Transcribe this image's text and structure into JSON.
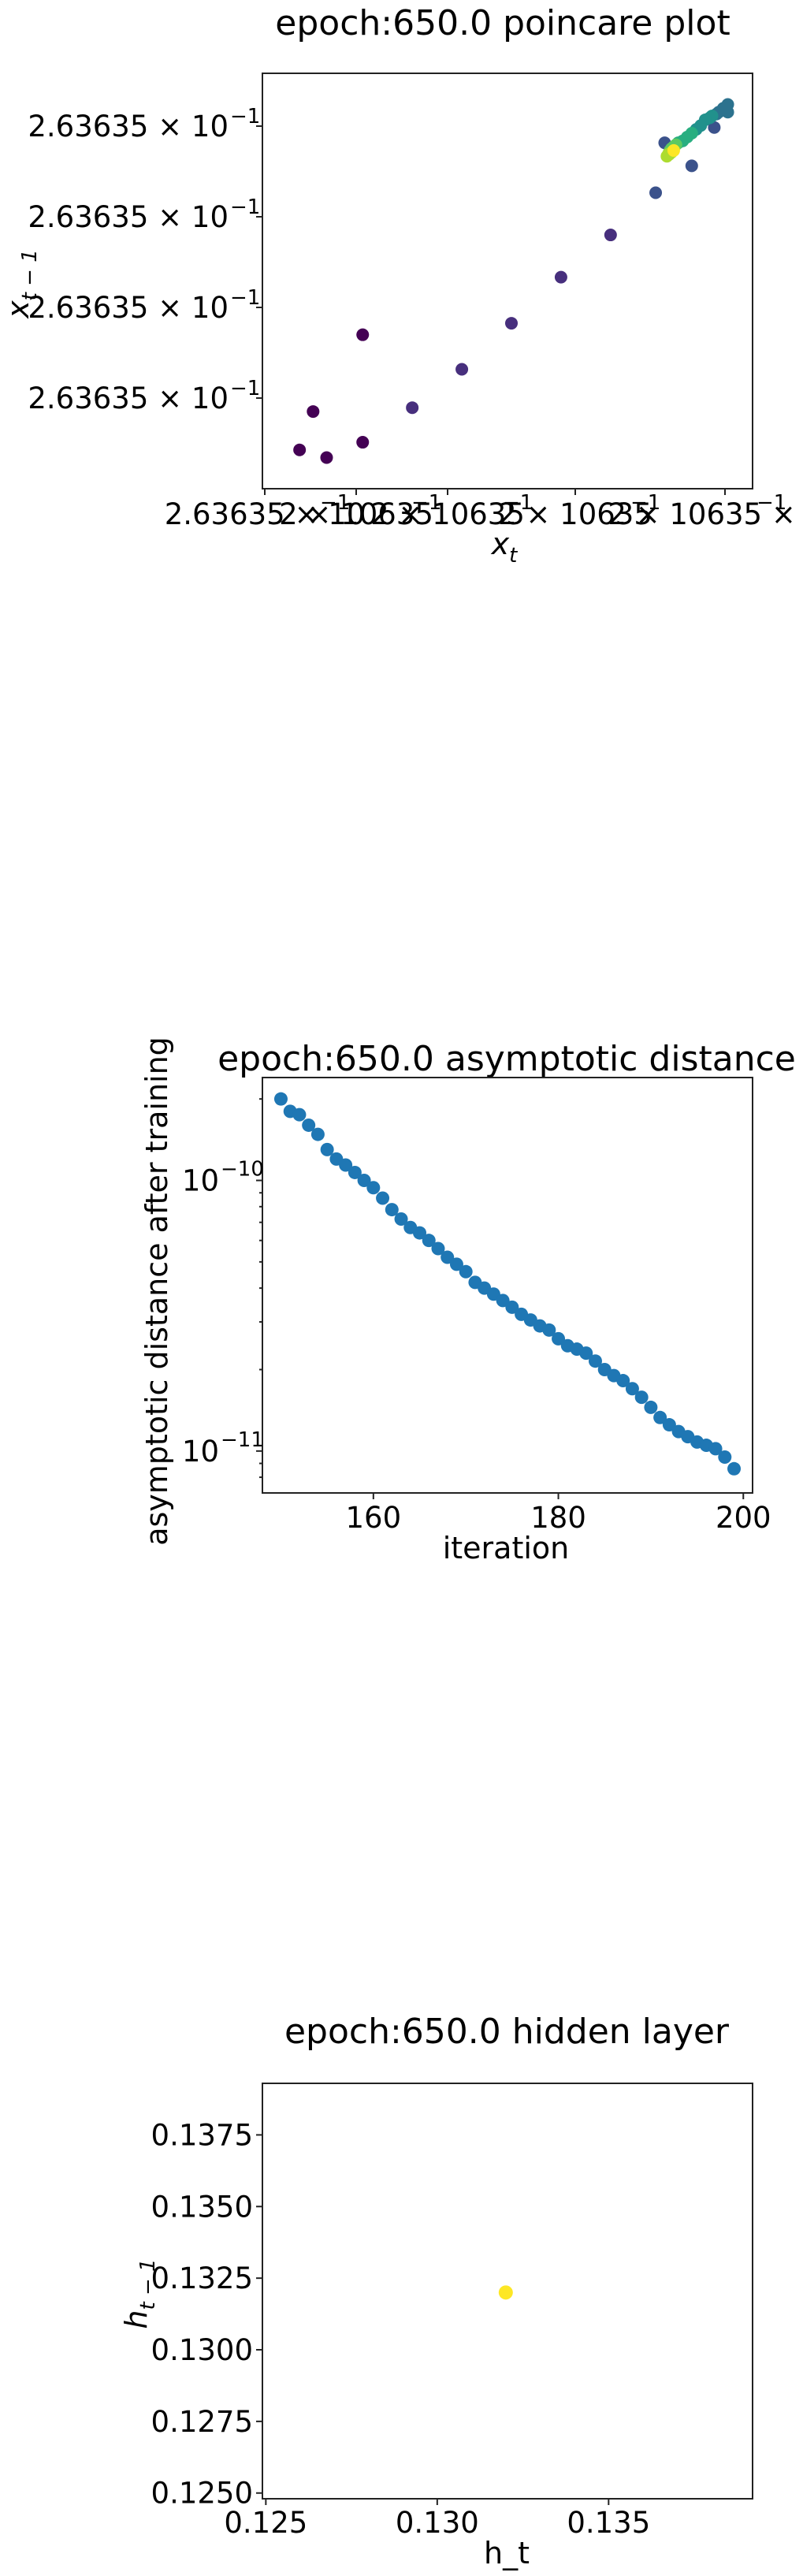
{
  "chart_data": [
    {
      "type": "scatter",
      "title": "epoch:650.0 poincare plot",
      "xlabel": "x_t",
      "ylabel": "x_{t-1}",
      "x_tick_labels": [
        "2.63635 × 10",
        "2 × 10635",
        "2 × 10635",
        "2 × 10635",
        "2 × 10635 × 10"
      ],
      "x_tick_exponent": "−1",
      "y_tick_labels": [
        "2.63635 × 10",
        "2.63635 × 10",
        "2.63635 × 10",
        "2.63635 × 10"
      ],
      "y_tick_exponent": "−1",
      "xlim": [
        0,
        1
      ],
      "ylim": [
        0,
        1
      ],
      "colormap": [
        "#440154",
        "#472f7d",
        "#3b528b",
        "#2c728e",
        "#21918c",
        "#28ae80",
        "#5ec962",
        "#addc30",
        "#fde725"
      ],
      "points": [
        {
          "x": 0.03,
          "y": 0.06
        },
        {
          "x": 0.09,
          "y": 0.04
        },
        {
          "x": 0.06,
          "y": 0.16
        },
        {
          "x": 0.17,
          "y": 0.08
        },
        {
          "x": 0.17,
          "y": 0.36
        },
        {
          "x": 0.28,
          "y": 0.17
        },
        {
          "x": 0.39,
          "y": 0.27
        },
        {
          "x": 0.5,
          "y": 0.39
        },
        {
          "x": 0.61,
          "y": 0.51
        },
        {
          "x": 0.72,
          "y": 0.62
        },
        {
          "x": 0.82,
          "y": 0.73
        },
        {
          "x": 0.9,
          "y": 0.8
        },
        {
          "x": 0.84,
          "y": 0.86
        },
        {
          "x": 0.95,
          "y": 0.9
        },
        {
          "x": 0.98,
          "y": 0.94
        },
        {
          "x": 0.98,
          "y": 0.96
        },
        {
          "x": 0.97,
          "y": 0.95
        },
        {
          "x": 0.96,
          "y": 0.94
        },
        {
          "x": 0.955,
          "y": 0.935
        },
        {
          "x": 0.945,
          "y": 0.93
        },
        {
          "x": 0.94,
          "y": 0.925
        },
        {
          "x": 0.93,
          "y": 0.92
        },
        {
          "x": 0.92,
          "y": 0.905
        },
        {
          "x": 0.91,
          "y": 0.895
        },
        {
          "x": 0.9,
          "y": 0.885
        },
        {
          "x": 0.89,
          "y": 0.875
        },
        {
          "x": 0.88,
          "y": 0.865
        },
        {
          "x": 0.87,
          "y": 0.86
        },
        {
          "x": 0.865,
          "y": 0.855
        },
        {
          "x": 0.86,
          "y": 0.85
        },
        {
          "x": 0.855,
          "y": 0.845
        },
        {
          "x": 0.852,
          "y": 0.84
        },
        {
          "x": 0.85,
          "y": 0.835
        },
        {
          "x": 0.848,
          "y": 0.83
        },
        {
          "x": 0.845,
          "y": 0.825
        },
        {
          "x": 0.85,
          "y": 0.83
        },
        {
          "x": 0.855,
          "y": 0.835
        },
        {
          "x": 0.86,
          "y": 0.84
        }
      ]
    },
    {
      "type": "scatter",
      "title": "epoch:650.0 asymptotic distance",
      "xlabel": "iteration",
      "ylabel": "asymptotic distance after training",
      "yscale": "log",
      "xlim": [
        148,
        201
      ],
      "ylim": [
        7e-12,
        2.4e-10
      ],
      "x_ticks": [
        160,
        180,
        200
      ],
      "y_ticks": [
        {
          "value": 1e-10,
          "base": "10",
          "exp": "−10"
        },
        {
          "value": 1e-11,
          "base": "10",
          "exp": "−11"
        }
      ],
      "color": "#1f77b4",
      "x": [
        150,
        151,
        152,
        153,
        154,
        155,
        156,
        157,
        158,
        159,
        160,
        161,
        162,
        163,
        164,
        165,
        166,
        167,
        168,
        169,
        170,
        171,
        172,
        173,
        174,
        175,
        176,
        177,
        178,
        179,
        180,
        181,
        182,
        183,
        184,
        185,
        186,
        187,
        188,
        189,
        190,
        191,
        192,
        193,
        194,
        195,
        196,
        197,
        198,
        199
      ],
      "y": [
        2e-10,
        1.8e-10,
        1.75e-10,
        1.6e-10,
        1.48e-10,
        1.3e-10,
        1.2e-10,
        1.14e-10,
        1.07e-10,
        1e-10,
        9.4e-11,
        8.6e-11,
        7.8e-11,
        7.2e-11,
        6.7e-11,
        6.4e-11,
        6e-11,
        5.6e-11,
        5.2e-11,
        4.9e-11,
        4.6e-11,
        4.2e-11,
        4e-11,
        3.8e-11,
        3.6e-11,
        3.4e-11,
        3.2e-11,
        3.05e-11,
        2.9e-11,
        2.8e-11,
        2.6e-11,
        2.45e-11,
        2.38e-11,
        2.3e-11,
        2.15e-11,
        2e-11,
        1.9e-11,
        1.82e-11,
        1.7e-11,
        1.58e-11,
        1.45e-11,
        1.33e-11,
        1.25e-11,
        1.18e-11,
        1.13e-11,
        1.08e-11,
        1.05e-11,
        1.02e-11,
        9.5e-12,
        8.6e-12
      ]
    },
    {
      "type": "scatter",
      "title": "epoch:650.0 hidden layer",
      "xlabel": "h_t",
      "ylabel": "h_{t-1}",
      "xlim": [
        0.1249,
        0.1392
      ],
      "ylim": [
        0.1248,
        0.1393
      ],
      "x_ticks": [
        "0.125",
        "0.130",
        "0.135"
      ],
      "y_ticks": [
        "0.1250",
        "0.1275",
        "0.1300",
        "0.1325",
        "0.1350",
        "0.1375"
      ],
      "color": "#fde725",
      "x": [
        0.132
      ],
      "y": [
        0.132
      ]
    }
  ]
}
